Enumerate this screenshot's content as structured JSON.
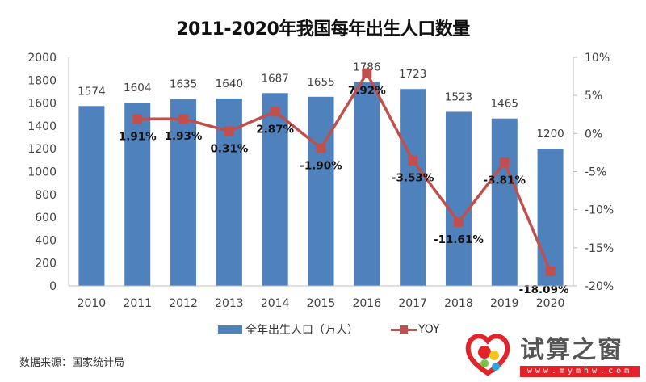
{
  "title": "2011-2020年我国每年出生人口数量",
  "legend": {
    "bar_label": "全年出生人口（万人）",
    "line_label": "YOY"
  },
  "source": "数据来源：国家统计局",
  "watermark": {
    "brand": "试算之窗",
    "url": "www.mymhw.com"
  },
  "colors": {
    "bar": "#4f81bd",
    "line": "#c0504d",
    "axis": "#bfbfbf",
    "text": "#404040"
  },
  "chart_data": {
    "type": "bar+line",
    "title": "2011-2020年我国每年出生人口数量",
    "categories": [
      "2010",
      "2011",
      "2012",
      "2013",
      "2014",
      "2015",
      "2016",
      "2017",
      "2018",
      "2019",
      "2020"
    ],
    "series": [
      {
        "name": "全年出生人口（万人）",
        "type": "bar",
        "axis": "left",
        "values": [
          1574,
          1604,
          1635,
          1640,
          1687,
          1655,
          1786,
          1723,
          1523,
          1465,
          1200
        ],
        "labels": [
          "1574",
          "1604",
          "1635",
          "1640",
          "1687",
          "1655",
          "1786",
          "1723",
          "1523",
          "1465",
          "1200"
        ]
      },
      {
        "name": "YOY",
        "type": "line",
        "axis": "right",
        "values": [
          null,
          1.91,
          1.93,
          0.31,
          2.87,
          -1.9,
          7.92,
          -3.53,
          -11.61,
          -3.81,
          -18.09
        ],
        "labels": [
          "",
          "1.91%",
          "1.93%",
          "0.31%",
          "2.87%",
          "-1.90%",
          "7.92%",
          "-3.53%",
          "-11.61%",
          "-3.81%",
          "-18.09%"
        ]
      }
    ],
    "left_axis": {
      "ylim": [
        0,
        2000
      ],
      "ticks": [
        "0",
        "200",
        "400",
        "600",
        "800",
        "1000",
        "1200",
        "1400",
        "1600",
        "1800",
        "2000"
      ]
    },
    "right_axis": {
      "ylim": [
        -20,
        10
      ],
      "ticks": [
        "-20%",
        "-15%",
        "-10%",
        "-5%",
        "0%",
        "5%",
        "10%"
      ]
    },
    "xlabel": "",
    "ylabel": "",
    "grid": false,
    "legend_position": "bottom"
  }
}
